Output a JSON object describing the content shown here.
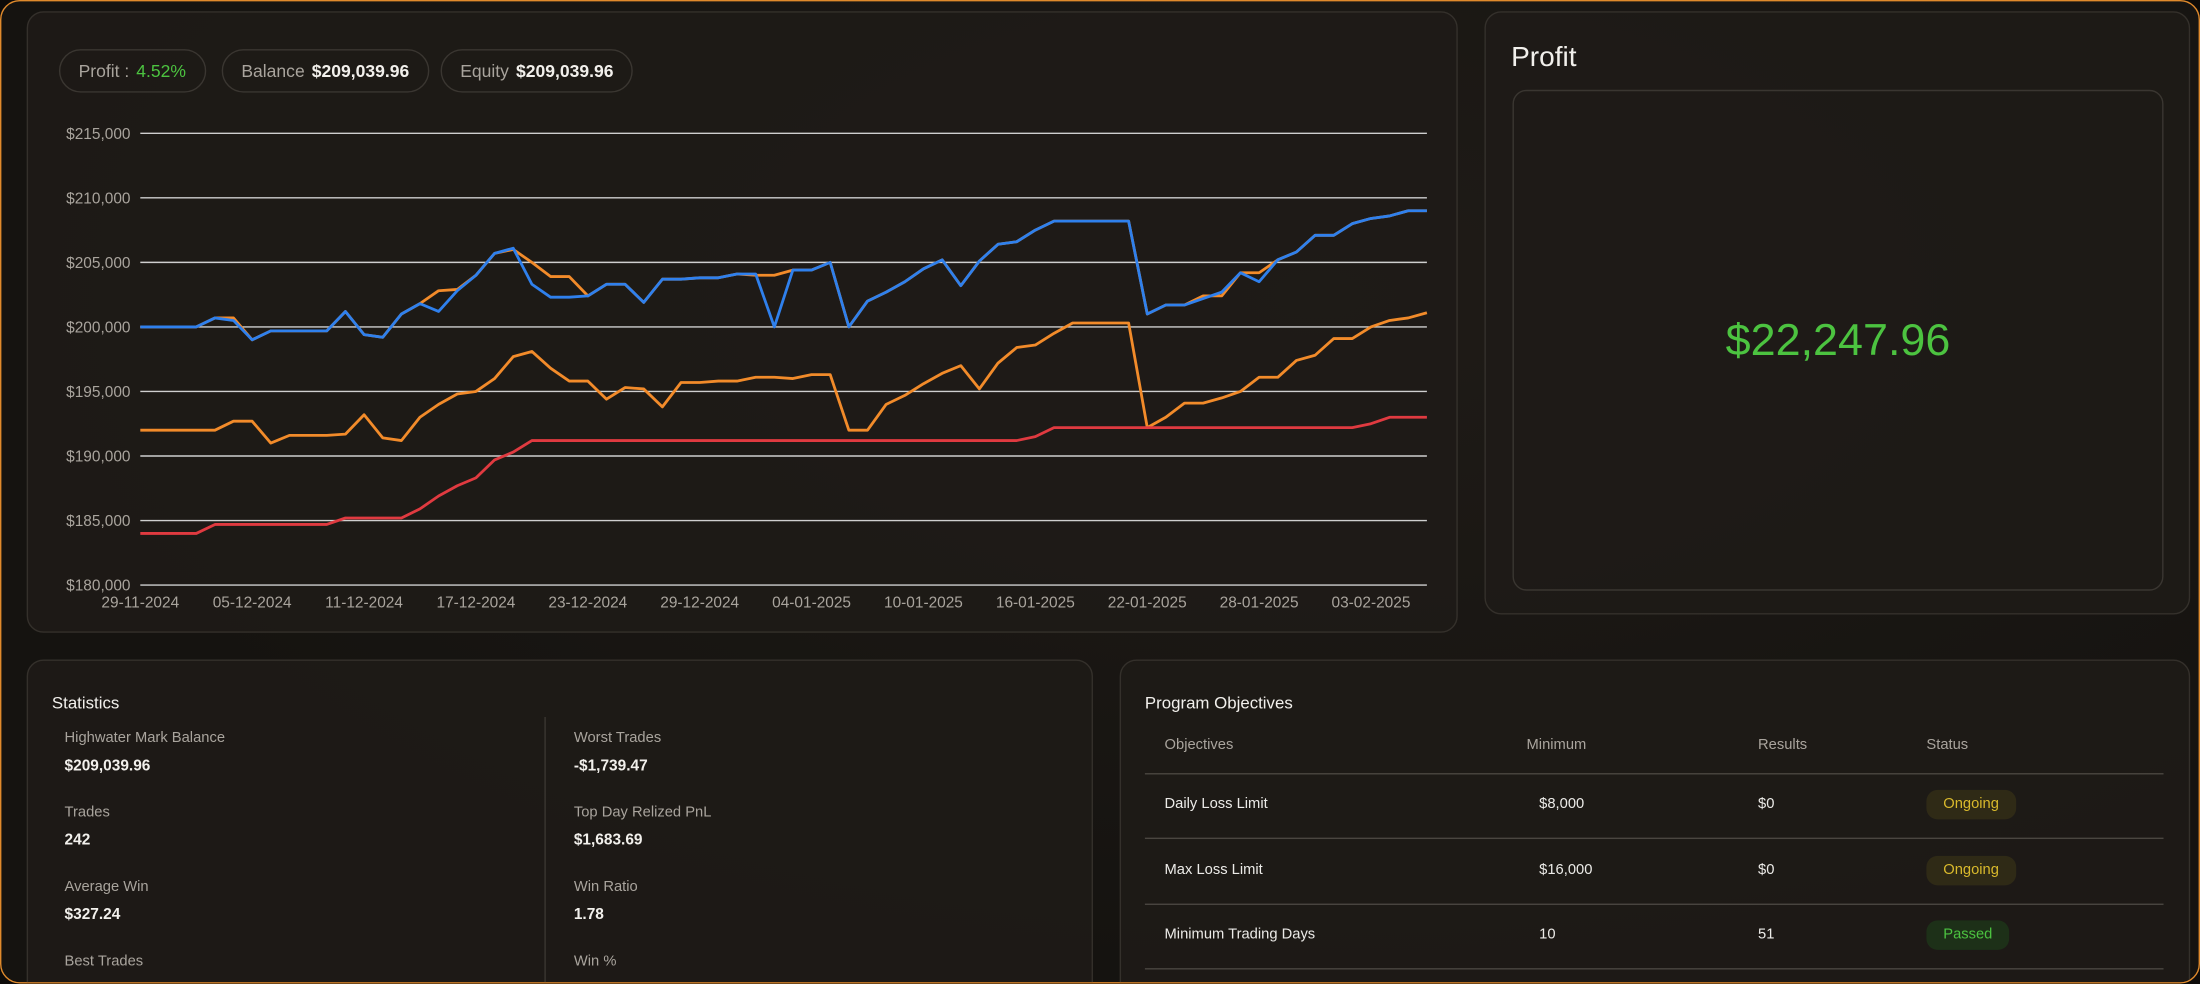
{
  "header": {
    "pills": [
      {
        "label": "Profit :",
        "value": "4.52%"
      },
      {
        "label": "Balance",
        "value": "$209,039.96"
      },
      {
        "label": "Equity",
        "value": "$209,039.96"
      }
    ]
  },
  "chart_data": {
    "type": "line",
    "categories": [
      "29-11-2024",
      null,
      null,
      null,
      null,
      null,
      "05-12-2024",
      null,
      null,
      null,
      null,
      null,
      "11-12-2024",
      null,
      null,
      null,
      null,
      null,
      "17-12-2024",
      null,
      null,
      null,
      null,
      null,
      "23-12-2024",
      null,
      null,
      null,
      null,
      null,
      "29-12-2024",
      null,
      null,
      null,
      null,
      null,
      "04-01-2025",
      null,
      null,
      null,
      null,
      null,
      "10-01-2025",
      null,
      null,
      null,
      null,
      null,
      "16-01-2025",
      null,
      null,
      null,
      null,
      null,
      "22-01-2025",
      null,
      null,
      null,
      null,
      null,
      "28-01-2025",
      null,
      null,
      null,
      null,
      null,
      "03-02-2025",
      null,
      null,
      null
    ],
    "series": [
      {
        "color": "#f28b2a",
        "values": [
          192000,
          192000,
          192000,
          192000,
          192000,
          192700,
          192700,
          191000,
          191600,
          191600,
          191600,
          191700,
          193200,
          191400,
          191200,
          193000,
          194000,
          194800,
          195000,
          196000,
          197700,
          198100,
          196800,
          195800,
          195800,
          194400,
          195300,
          195200,
          193800,
          195700,
          195700,
          195800,
          195800,
          196100,
          196100,
          196000,
          196300,
          196300,
          192000,
          192000,
          194000,
          194700,
          195600,
          196400,
          197000,
          195200,
          197200,
          198400,
          198600,
          199500,
          200300,
          200300,
          200300,
          200300,
          192200,
          193000,
          194100,
          194100,
          194500,
          195000,
          196100,
          196100,
          197400,
          197800,
          199100,
          199100,
          200000,
          200500,
          200700,
          201100
        ]
      },
      {
        "color": "#e03a40",
        "values": [
          184000,
          184000,
          184000,
          184000,
          184700,
          184700,
          184700,
          184700,
          184700,
          184700,
          184700,
          185200,
          185200,
          185200,
          185200,
          185900,
          186900,
          187700,
          188300,
          189700,
          190300,
          191200,
          191200,
          191200,
          191200,
          191200,
          191200,
          191200,
          191200,
          191200,
          191200,
          191200,
          191200,
          191200,
          191200,
          191200,
          191200,
          191200,
          191200,
          191200,
          191200,
          191200,
          191200,
          191200,
          191200,
          191200,
          191200,
          191200,
          191500,
          192200,
          192200,
          192200,
          192200,
          192200,
          192200,
          192200,
          192200,
          192200,
          192200,
          192200,
          192200,
          192200,
          192200,
          192200,
          192200,
          192200,
          192500,
          193000,
          193000,
          193000
        ]
      },
      {
        "color": "#f28b2a",
        "values": [
          200000,
          200000,
          200000,
          200000,
          200700,
          200700,
          199000,
          199700,
          199700,
          199700,
          199700,
          201200,
          199400,
          199200,
          201000,
          201800,
          202800,
          202900,
          204000,
          205700,
          206000,
          205000,
          203900,
          203900,
          202400,
          203300,
          203300,
          201900,
          203700,
          203700,
          203800,
          203800,
          204100,
          204000,
          204000,
          204400,
          204400,
          205000,
          200000,
          202000,
          202700,
          203500,
          204500,
          205200,
          203200,
          205100,
          206400,
          206600,
          207500,
          208200,
          208200,
          208200,
          208200,
          208200,
          201000,
          201700,
          201700,
          202400,
          202400,
          204200,
          204200,
          205200,
          205800,
          207100,
          207100,
          208000,
          208400,
          208600,
          209000,
          209000
        ]
      },
      {
        "color": "#2f80ed",
        "values": [
          200000,
          200000,
          200000,
          200000,
          200700,
          200500,
          199000,
          199700,
          199700,
          199700,
          199700,
          201200,
          199400,
          199200,
          201000,
          201800,
          201200,
          202800,
          204000,
          205700,
          206100,
          203300,
          202300,
          202300,
          202400,
          203300,
          203300,
          201900,
          203700,
          203700,
          203800,
          203800,
          204100,
          204100,
          200000,
          204400,
          204400,
          205000,
          200000,
          202000,
          202700,
          203500,
          204500,
          205200,
          203200,
          205100,
          206400,
          206600,
          207500,
          208200,
          208200,
          208200,
          208200,
          208200,
          201000,
          201700,
          201700,
          202200,
          202700,
          204200,
          203500,
          205200,
          205800,
          207100,
          207100,
          208000,
          208400,
          208600,
          209000,
          209000
        ]
      }
    ],
    "ylim": [
      180000,
      215000
    ],
    "yticks": [
      {
        "value": 180000,
        "label": "$180,000"
      },
      {
        "value": 185000,
        "label": "$185,000"
      },
      {
        "value": 190000,
        "label": "$190,000"
      },
      {
        "value": 195000,
        "label": "$195,000"
      },
      {
        "value": 200000,
        "label": "$200,000"
      },
      {
        "value": 205000,
        "label": "$205,000"
      },
      {
        "value": 210000,
        "label": "$210,000"
      },
      {
        "value": 215000,
        "label": "$215,000"
      }
    ],
    "grid": true
  },
  "profit": {
    "title": "Profit",
    "value": "$22,247.96"
  },
  "statistics": {
    "title": "Statistics",
    "items": [
      {
        "label": "Highwater Mark Balance",
        "value": "$209,039.96"
      },
      {
        "label": "Trades",
        "value": "242"
      },
      {
        "label": "Average Win",
        "value": "$327.24"
      },
      {
        "label": "Best Trades"
      },
      {
        "label": "Worst Trades",
        "value": "-$1,739.47"
      },
      {
        "label": "Top Day Relized PnL",
        "value": "$1,683.69"
      },
      {
        "label": "Win Ratio",
        "value": "1.78"
      },
      {
        "label": "Win %"
      }
    ]
  },
  "objectives": {
    "title": "Program Objectives",
    "columns": [
      "Objectives",
      "Minimum",
      "Results",
      "Status"
    ],
    "rows": [
      [
        "Daily Loss Limit",
        "$8,000",
        "$0",
        "Ongoing"
      ],
      [
        "Max Loss Limit",
        "$16,000",
        "$0",
        "Ongoing"
      ],
      [
        "Minimum Trading Days",
        "10",
        "51",
        "Passed"
      ]
    ]
  }
}
